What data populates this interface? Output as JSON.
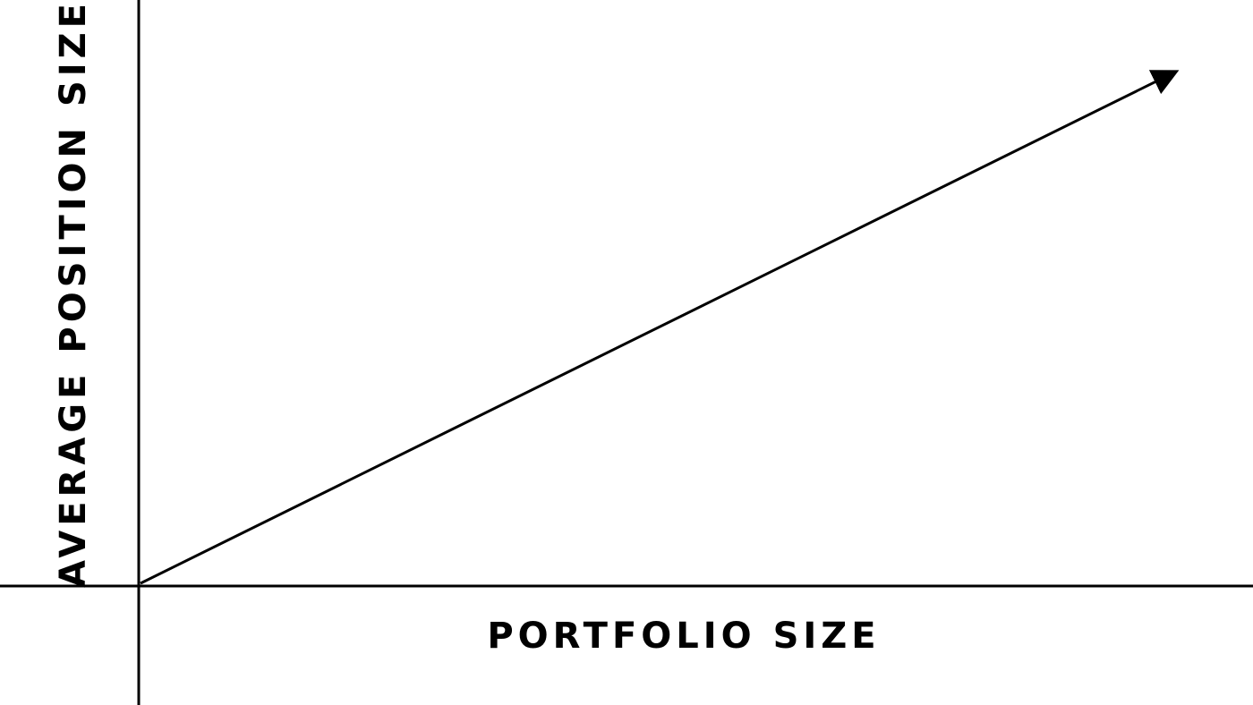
{
  "diagram": {
    "x_axis_label": "PORTFOLIO SIZE",
    "y_axis_label": "AVERAGE POSITION SIZE",
    "relationship": "increasing-linear",
    "colors": {
      "background": "#ffffff",
      "ink": "#000000"
    }
  }
}
